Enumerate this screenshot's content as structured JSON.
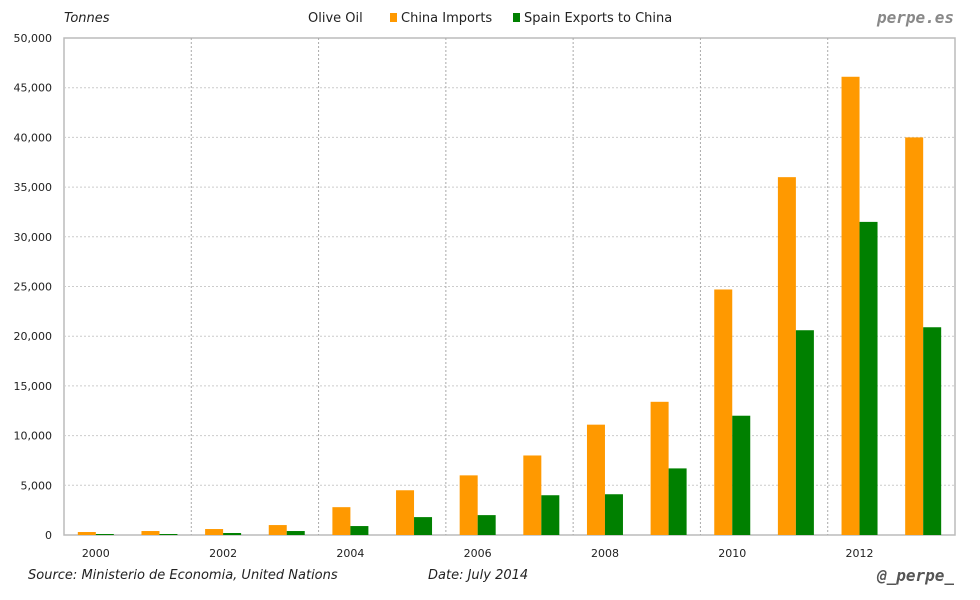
{
  "header": {
    "unit": "Tonnes",
    "title": "Olive Oil",
    "brand": "perpe.es"
  },
  "footer": {
    "source": "Source: Ministerio de Economia, United Nations",
    "date": "Date: July 2014",
    "handle": "@_perpe_"
  },
  "colors": {
    "imports": "#ff9900",
    "exports": "#008000"
  },
  "chart_data": {
    "type": "bar",
    "title": "Olive Oil",
    "ylabel": "Tonnes",
    "xlabel": "",
    "ylim": [
      0,
      50000
    ],
    "yticks": [
      "0",
      "5,000",
      "10,000",
      "15,000",
      "20,000",
      "25,000",
      "30,000",
      "35,000",
      "40,000",
      "45,000",
      "50,000"
    ],
    "xtick_labels": [
      "2000",
      "2002",
      "2004",
      "2006",
      "2008",
      "2010",
      "2012"
    ],
    "categories": [
      "2000",
      "2001",
      "2002",
      "2003",
      "2004",
      "2005",
      "2006",
      "2007",
      "2008",
      "2009",
      "2010",
      "2011",
      "2012",
      "2013"
    ],
    "legend": "top-center",
    "series": [
      {
        "name": "China Imports",
        "values": [
          300,
          400,
          600,
          1000,
          2800,
          4500,
          6000,
          8000,
          11100,
          13400,
          24700,
          36000,
          46100,
          40000
        ]
      },
      {
        "name": "Spain Exports to China",
        "values": [
          100,
          100,
          200,
          400,
          900,
          1800,
          2000,
          4000,
          4100,
          6700,
          12000,
          20600,
          31500,
          20900
        ]
      }
    ]
  }
}
